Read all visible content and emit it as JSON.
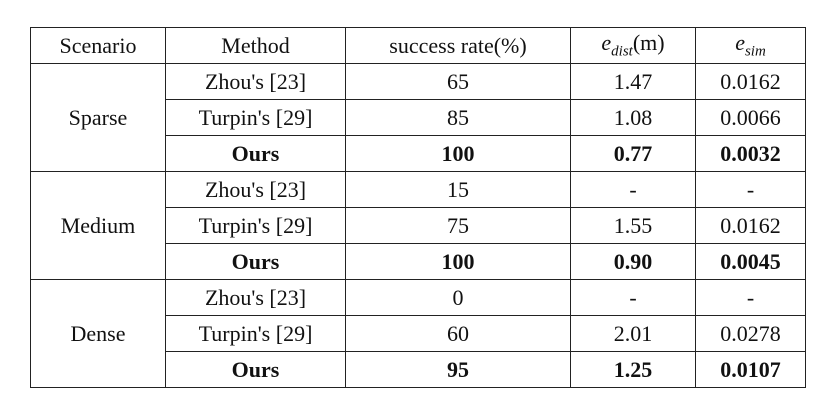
{
  "table": {
    "headers": {
      "scenario": "Scenario",
      "method": "Method",
      "success_rate": "success rate(%)",
      "e_dist_base": "e",
      "e_dist_sub": "dist",
      "e_dist_unit": "(m)",
      "e_sim_base": "e",
      "e_sim_sub": "sim"
    },
    "groups": [
      {
        "scenario": "Sparse",
        "rows": [
          {
            "method": "Zhou's [23]",
            "success_rate": "65",
            "e_dist": "1.47",
            "e_sim": "0.0162",
            "bold": false
          },
          {
            "method": "Turpin's [29]",
            "success_rate": "85",
            "e_dist": "1.08",
            "e_sim": "0.0066",
            "bold": false
          },
          {
            "method": "Ours",
            "success_rate": "100",
            "e_dist": "0.77",
            "e_sim": "0.0032",
            "bold": true
          }
        ]
      },
      {
        "scenario": "Medium",
        "rows": [
          {
            "method": "Zhou's [23]",
            "success_rate": "15",
            "e_dist": "-",
            "e_sim": "-",
            "bold": false
          },
          {
            "method": "Turpin's [29]",
            "success_rate": "75",
            "e_dist": "1.55",
            "e_sim": "0.0162",
            "bold": false
          },
          {
            "method": "Ours",
            "success_rate": "100",
            "e_dist": "0.90",
            "e_sim": "0.0045",
            "bold": true
          }
        ]
      },
      {
        "scenario": "Dense",
        "rows": [
          {
            "method": "Zhou's [23]",
            "success_rate": "0",
            "e_dist": "-",
            "e_sim": "-",
            "bold": false
          },
          {
            "method": "Turpin's [29]",
            "success_rate": "60",
            "e_dist": "2.01",
            "e_sim": "0.0278",
            "bold": false
          },
          {
            "method": "Ours",
            "success_rate": "95",
            "e_dist": "1.25",
            "e_sim": "0.0107",
            "bold": true
          }
        ]
      }
    ]
  }
}
